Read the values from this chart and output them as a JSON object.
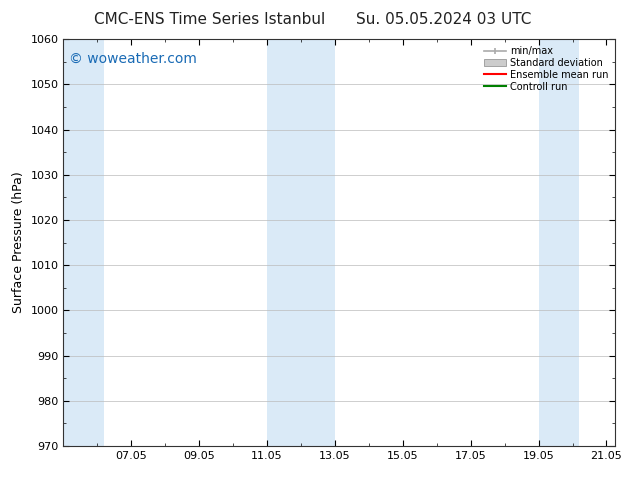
{
  "title_left": "CMC-ENS Time Series Istanbul",
  "title_right": "Su. 05.05.2024 03 UTC",
  "ylabel": "Surface Pressure (hPa)",
  "ylim": [
    970,
    1060
  ],
  "yticks": [
    970,
    980,
    990,
    1000,
    1010,
    1020,
    1030,
    1040,
    1050,
    1060
  ],
  "xlim_start": 5.0,
  "xlim_end": 21.25,
  "xtick_labels": [
    "07.05",
    "09.05",
    "11.05",
    "13.05",
    "15.05",
    "17.05",
    "19.05",
    "21.05"
  ],
  "xtick_positions": [
    7.0,
    9.0,
    11.0,
    13.0,
    15.0,
    17.0,
    19.0,
    21.0
  ],
  "shaded_bands": [
    {
      "x_start": 5.0,
      "x_end": 6.2,
      "color": "#daeaf7"
    },
    {
      "x_start": 11.0,
      "x_end": 13.0,
      "color": "#daeaf7"
    },
    {
      "x_start": 19.0,
      "x_end": 20.2,
      "color": "#daeaf7"
    }
  ],
  "watermark_text": "© woweather.com",
  "watermark_color": "#1a6bb5",
  "background_color": "#ffffff",
  "plot_bg_color": "#ffffff",
  "grid_color": "#bbbbbb",
  "legend_entries": [
    {
      "label": "min/max",
      "color": "#aaaaaa",
      "style": "minmax"
    },
    {
      "label": "Standard deviation",
      "color": "#cccccc",
      "style": "stddev"
    },
    {
      "label": "Ensemble mean run",
      "color": "#ff0000",
      "style": "line"
    },
    {
      "label": "Controll run",
      "color": "#008000",
      "style": "line"
    }
  ],
  "title_fontsize": 11,
  "tick_fontsize": 8,
  "ylabel_fontsize": 9,
  "watermark_fontsize": 10,
  "legend_fontsize": 7
}
